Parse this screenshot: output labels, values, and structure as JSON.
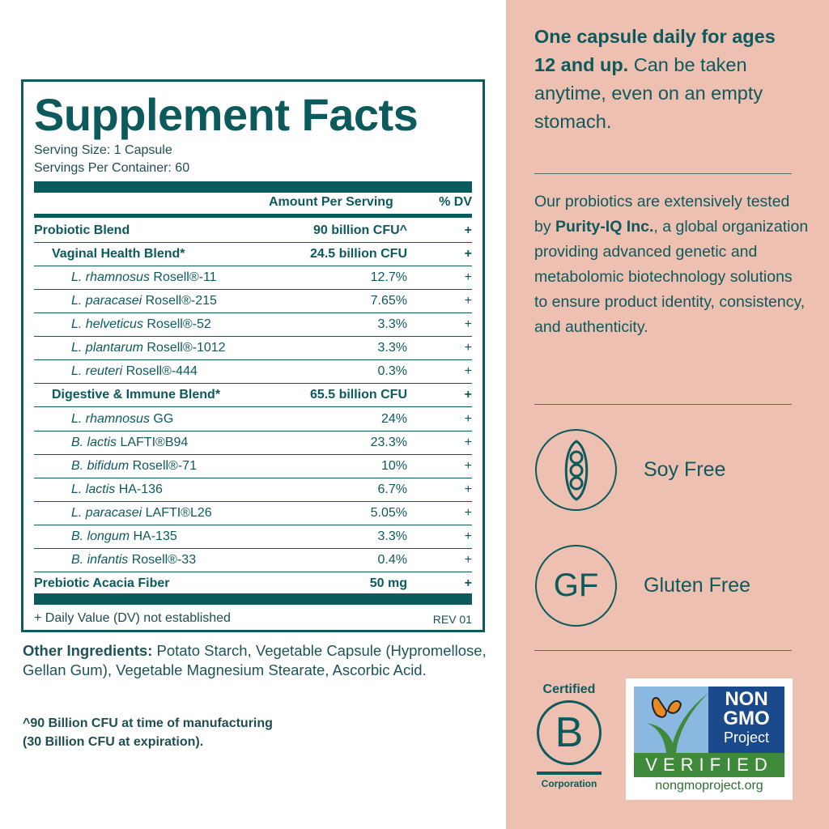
{
  "facts": {
    "title": "Supplement Facts",
    "serving_size": "Serving Size: 1 Capsule",
    "servings_per_container": "Servings Per Container: 60",
    "col_amount": "Amount Per Serving",
    "col_dv": "% DV",
    "rows": [
      {
        "name": "Probiotic Blend",
        "amount": "90 billion CFU^",
        "dv": "+",
        "level": 0,
        "bold": true
      },
      {
        "name": "Vaginal Health Blend*",
        "amount": "24.5 billion CFU",
        "dv": "+",
        "level": 1,
        "bold": true
      },
      {
        "italic": "L. rhamnosus",
        "name": " Rosell®-11",
        "amount": "12.7%",
        "dv": "+",
        "level": 2
      },
      {
        "italic": "L. paracasei",
        "name": " Rosell®-215",
        "amount": "7.65%",
        "dv": "+",
        "level": 2
      },
      {
        "italic": "L. helveticus",
        "name": " Rosell®-52",
        "amount": "3.3%",
        "dv": "+",
        "level": 2
      },
      {
        "italic": "L. plantarum",
        "name": " Rosell®-1012",
        "amount": "3.3%",
        "dv": "+",
        "level": 2
      },
      {
        "italic": "L. reuteri",
        "name": " Rosell®-444",
        "amount": "0.3%",
        "dv": "+",
        "level": 2
      },
      {
        "name": "Digestive & Immune Blend*",
        "amount": "65.5 billion CFU",
        "dv": "+",
        "level": 1,
        "bold": true
      },
      {
        "italic": "L. rhamnosus",
        "name": " GG",
        "amount": "24%",
        "dv": "+",
        "level": 2
      },
      {
        "italic": "B. lactis",
        "name": " LAFTI®B94",
        "amount": "23.3%",
        "dv": "+",
        "level": 2
      },
      {
        "italic": "B. bifidum",
        "name": " Rosell®-71",
        "amount": "10%",
        "dv": "+",
        "level": 2
      },
      {
        "italic": "L. lactis",
        "name": " HA-136",
        "amount": "6.7%",
        "dv": "+",
        "level": 2
      },
      {
        "italic": "L. paracasei",
        "name": " LAFTI®L26",
        "amount": "5.05%",
        "dv": "+",
        "level": 2
      },
      {
        "italic": "B. longum",
        "name": " HA-135",
        "amount": "3.3%",
        "dv": "+",
        "level": 2
      },
      {
        "italic": "B. infantis",
        "name": " Rosell®-33",
        "amount": "0.4%",
        "dv": "+",
        "level": 2
      },
      {
        "name": "Prebiotic Acacia Fiber",
        "amount": "50 mg",
        "dv": "+",
        "level": 0,
        "bold": true
      }
    ],
    "dv_note": "+ Daily Value (DV) not established",
    "rev": "REV 01"
  },
  "other_ingredients": {
    "label": "Other Ingredients:",
    "text": " Potato Starch, Vegetable Capsule (Hypromellose, Gellan Gum), Vegetable Magnesium Stearate, Ascorbic Acid."
  },
  "footnote": {
    "line1": "^90 Billion CFU at time of manufacturing",
    "line2": "(30 Billion CFU at expiration)."
  },
  "right": {
    "dosage_bold": "One capsule daily for ages 12 and up.",
    "dosage_rest": " Can be taken anytime, even on an empty stomach.",
    "testing_pre": "Our probiotics are extensively tested by ",
    "testing_bold": "Purity-IQ Inc.",
    "testing_post": ", a global organization providing advanced genetic and metabolomic biotechnology solutions to ensure product identity, consistency, and authenticity.",
    "soy_free": "Soy Free",
    "gf_icon_text": "GF",
    "gluten_free": "Gluten Free",
    "bcorp": {
      "top": "Certified",
      "letter": "B",
      "bottom": "Corporation"
    },
    "nongmo": {
      "non": "NON",
      "gmo": "GMO",
      "project": "Project",
      "verified": "VERIFIED",
      "url": "nongmoproject.org"
    }
  },
  "colors": {
    "teal": "#0d5a5c",
    "pink": "#eec0b1"
  }
}
